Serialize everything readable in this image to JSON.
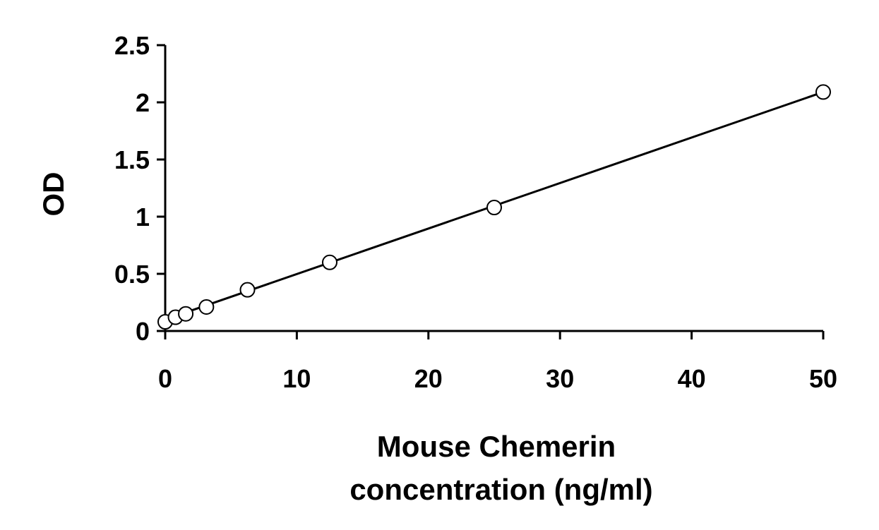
{
  "chart_data": {
    "type": "scatter",
    "title": "",
    "xlabel_lines": [
      "Mouse Chemerin",
      "concentration (ng/ml)"
    ],
    "ylabel": "OD",
    "xlim": [
      0,
      50
    ],
    "ylim": [
      0,
      2.5
    ],
    "x_ticks": [
      0,
      10,
      20,
      30,
      40,
      50
    ],
    "x_tick_labels": [
      "0",
      "10",
      "20",
      "30",
      "40",
      "50"
    ],
    "y_ticks": [
      0,
      0.5,
      1,
      1.5,
      2,
      2.5
    ],
    "y_tick_labels": [
      "0",
      "0.5",
      "1",
      "1.5",
      "2",
      "2.5"
    ],
    "grid": false,
    "legend": "none",
    "series": [
      {
        "x": [
          0,
          0.78,
          1.56,
          3.13,
          6.25,
          12.5,
          25,
          50
        ],
        "y": [
          0.08,
          0.12,
          0.15,
          0.21,
          0.36,
          0.6,
          1.08,
          2.09
        ],
        "marker": "open-circle"
      }
    ],
    "trendline": {
      "type": "linear",
      "x": [
        0,
        50
      ],
      "y": [
        0.1,
        2.09
      ]
    },
    "colors": {
      "line": "#000000",
      "marker_fill": "#ffffff",
      "marker_stroke": "#000000"
    }
  }
}
